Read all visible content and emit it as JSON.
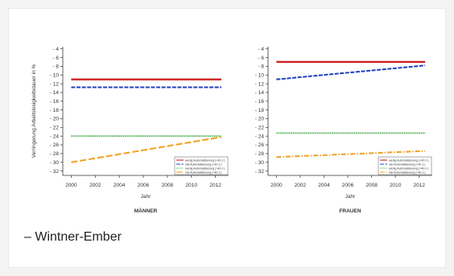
{
  "caption": "– Wintner-Ember",
  "ylabel": "Verringerung Arbeitslosigkeitsdauer in %",
  "legend_labels": [
    "wenig Automatisierung (<40 J.)",
    "viel Automatisierung (<40 J.)",
    "wenig Automatisierung (>40 J.)",
    "viel Automatisierung (>40 J.)"
  ],
  "chart_data": [
    {
      "type": "line",
      "panel": "MÄNNER",
      "xlabel": "Jahr",
      "ylabel": "Verringerung Arbeitslosigkeitsdauer in %",
      "xlim": [
        1999.3,
        2013.1
      ],
      "ylim": [
        -33,
        -3.5
      ],
      "xticks": [
        2000,
        2002,
        2004,
        2006,
        2008,
        2010,
        2012
      ],
      "yticks": [
        -4,
        -6,
        -8,
        -10,
        -12,
        -14,
        -16,
        -18,
        -20,
        -22,
        -24,
        -26,
        -28,
        -30,
        -32
      ],
      "series": [
        {
          "name": "wenig Automatisierung (<40 J.)",
          "color": "#cc2222",
          "dash": "solid",
          "x": [
            2000,
            2012.5
          ],
          "y": [
            -11,
            -11
          ]
        },
        {
          "name": "viel Automatisierung (<40 J.)",
          "color": "#1f3fbf",
          "dash": "dashed",
          "x": [
            2000,
            2012.5
          ],
          "y": [
            -12.8,
            -12.8
          ]
        },
        {
          "name": "wenig Automatisierung (>40 J.)",
          "color": "#3aa63a",
          "dash": "dotted",
          "x": [
            2000,
            2012.5
          ],
          "y": [
            -24,
            -24
          ]
        },
        {
          "name": "viel Automatisierung (>40 J.)",
          "color": "#f0a020",
          "dash": "longdash",
          "x": [
            2000,
            2012.5
          ],
          "y": [
            -30,
            -24.2
          ]
        }
      ]
    },
    {
      "type": "line",
      "panel": "FRAUEN",
      "xlabel": "Jahr",
      "ylabel": "",
      "xlim": [
        1999.3,
        2013.1
      ],
      "ylim": [
        -33,
        -3.5
      ],
      "xticks": [
        2000,
        2002,
        2004,
        2006,
        2008,
        2010,
        2012
      ],
      "yticks": [
        -4,
        -6,
        -8,
        -10,
        -12,
        -14,
        -16,
        -18,
        -20,
        -22,
        -24,
        -26,
        -28,
        -30,
        -32
      ],
      "series": [
        {
          "name": "wenig Automatisierung (<40 J.)",
          "color": "#cc2222",
          "dash": "solid",
          "x": [
            2000,
            2012.5
          ],
          "y": [
            -7,
            -7
          ]
        },
        {
          "name": "viel Automatisierung (<40 J.)",
          "color": "#1f3fbf",
          "dash": "dashed",
          "x": [
            2000,
            2012.5
          ],
          "y": [
            -11,
            -7.8
          ]
        },
        {
          "name": "wenig Automatisierung (>40 J.)",
          "color": "#3aa63a",
          "dash": "dotted",
          "x": [
            2000,
            2012.5
          ],
          "y": [
            -23.3,
            -23.3
          ]
        },
        {
          "name": "viel Automatisierung (>40 J.)",
          "color": "#f0a020",
          "dash": "dashdot",
          "x": [
            2000,
            2012.5
          ],
          "y": [
            -28.8,
            -27.4
          ]
        }
      ]
    }
  ]
}
